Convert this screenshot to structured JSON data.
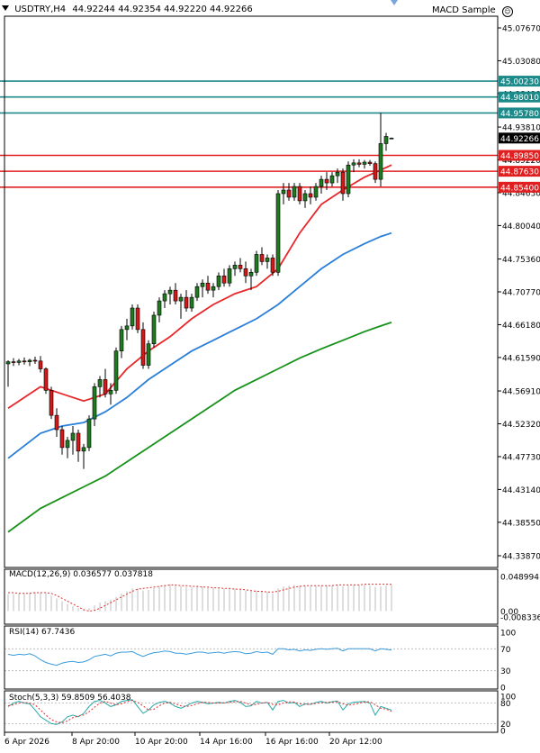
{
  "window": {
    "symbol_title": "USDTRY,H4",
    "ohlc": "44.92244 44.92354 44.92220 44.92266",
    "indicator_name": "MACD Sample",
    "symbol_arrow_icon": "triangle-down-icon",
    "smiley_icon": "smiley-icon"
  },
  "colors": {
    "bull": "#1f7a1f",
    "bear": "#d21818",
    "ma_fast": "#e8272a",
    "ma_mid": "#2a7fd8",
    "ma_slow": "#16911a",
    "hline_teal": "#1d8a8a",
    "hline_red": "#e02020",
    "macd_hist": "#c8c8c8",
    "macd_signal": "#e03030",
    "rsi": "#3a9bdc",
    "stoch_main": "#2aa8a8",
    "stoch_signal": "#e03030"
  },
  "price_axis": {
    "ticks": [
      "45.07670",
      "45.03080",
      "44.98490",
      "44.93810",
      "44.89220",
      "44.84630",
      "44.80040",
      "44.75360",
      "44.70770",
      "44.66180",
      "44.61590",
      "44.56910",
      "44.52320",
      "44.47730",
      "44.43140",
      "44.38550",
      "44.33870"
    ],
    "current_price_label": "44.92266"
  },
  "horizontal_levels": [
    {
      "label": "45.00230",
      "value": 45.0023,
      "kind": "teal"
    },
    {
      "label": "44.98010",
      "value": 44.9801,
      "kind": "teal"
    },
    {
      "label": "44.95780",
      "value": 44.9578,
      "kind": "teal"
    },
    {
      "label": "44.89850",
      "value": 44.8985,
      "kind": "red"
    },
    {
      "label": "44.87630",
      "value": 44.8763,
      "kind": "red"
    },
    {
      "label": "44.85400",
      "value": 44.854,
      "kind": "red"
    }
  ],
  "time_axis": [
    "6 Apr 2026",
    "8 Apr 20:00",
    "10 Apr 20:00",
    "14 Apr 16:00",
    "16 Apr 16:00",
    "20 Apr 12:00"
  ],
  "macd": {
    "label": "MACD(12,26,9) 0.036577 0.037818",
    "ticks": [
      "0.048994",
      "0.00",
      "-0.008336"
    ]
  },
  "rsi": {
    "label": "RSI(14) 67.7436",
    "ticks": [
      "100",
      "70",
      "30",
      "0"
    ]
  },
  "stoch": {
    "label": "Stoch(5,3,3) 59.8509 56.4038",
    "ticks": [
      "100",
      "80",
      "20",
      "0"
    ]
  },
  "chart_data": {
    "type": "candlestick",
    "symbol": "USDTRY",
    "timeframe": "H4",
    "ylim": [
      44.33,
      45.09
    ],
    "candles": [
      {
        "o": 44.607,
        "h": 44.612,
        "l": 44.575,
        "c": 44.61
      },
      {
        "o": 44.61,
        "h": 44.615,
        "l": 44.604,
        "c": 44.609
      },
      {
        "o": 44.609,
        "h": 44.614,
        "l": 44.605,
        "c": 44.611
      },
      {
        "o": 44.611,
        "h": 44.616,
        "l": 44.606,
        "c": 44.61
      },
      {
        "o": 44.61,
        "h": 44.614,
        "l": 44.604,
        "c": 44.612
      },
      {
        "o": 44.612,
        "h": 44.617,
        "l": 44.607,
        "c": 44.611
      },
      {
        "o": 44.611,
        "h": 44.618,
        "l": 44.595,
        "c": 44.6
      },
      {
        "o": 44.6,
        "h": 44.602,
        "l": 44.565,
        "c": 44.57
      },
      {
        "o": 44.57,
        "h": 44.575,
        "l": 44.53,
        "c": 44.535
      },
      {
        "o": 44.535,
        "h": 44.545,
        "l": 44.505,
        "c": 44.515
      },
      {
        "o": 44.515,
        "h": 44.52,
        "l": 44.48,
        "c": 44.49
      },
      {
        "o": 44.49,
        "h": 44.505,
        "l": 44.475,
        "c": 44.5
      },
      {
        "o": 44.5,
        "h": 44.52,
        "l": 44.48,
        "c": 44.51
      },
      {
        "o": 44.51,
        "h": 44.515,
        "l": 44.47,
        "c": 44.485
      },
      {
        "o": 44.485,
        "h": 44.495,
        "l": 44.46,
        "c": 44.49
      },
      {
        "o": 44.49,
        "h": 44.535,
        "l": 44.485,
        "c": 44.53
      },
      {
        "o": 44.53,
        "h": 44.58,
        "l": 44.52,
        "c": 44.575
      },
      {
        "o": 44.575,
        "h": 44.59,
        "l": 44.56,
        "c": 44.585
      },
      {
        "o": 44.585,
        "h": 44.6,
        "l": 44.56,
        "c": 44.565
      },
      {
        "o": 44.565,
        "h": 44.58,
        "l": 44.55,
        "c": 44.57
      },
      {
        "o": 44.57,
        "h": 44.63,
        "l": 44.565,
        "c": 44.625
      },
      {
        "o": 44.625,
        "h": 44.66,
        "l": 44.615,
        "c": 44.655
      },
      {
        "o": 44.655,
        "h": 44.67,
        "l": 44.64,
        "c": 44.66
      },
      {
        "o": 44.66,
        "h": 44.69,
        "l": 44.655,
        "c": 44.685
      },
      {
        "o": 44.685,
        "h": 44.69,
        "l": 44.65,
        "c": 44.655
      },
      {
        "o": 44.655,
        "h": 44.665,
        "l": 44.6,
        "c": 44.605
      },
      {
        "o": 44.605,
        "h": 44.64,
        "l": 44.6,
        "c": 44.635
      },
      {
        "o": 44.635,
        "h": 44.68,
        "l": 44.63,
        "c": 44.675
      },
      {
        "o": 44.675,
        "h": 44.7,
        "l": 44.665,
        "c": 44.695
      },
      {
        "o": 44.695,
        "h": 44.71,
        "l": 44.685,
        "c": 44.705
      },
      {
        "o": 44.705,
        "h": 44.715,
        "l": 44.69,
        "c": 44.71
      },
      {
        "o": 44.71,
        "h": 44.72,
        "l": 44.69,
        "c": 44.695
      },
      {
        "o": 44.695,
        "h": 44.705,
        "l": 44.67,
        "c": 44.7
      },
      {
        "o": 44.7,
        "h": 44.71,
        "l": 44.68,
        "c": 44.685
      },
      {
        "o": 44.685,
        "h": 44.705,
        "l": 44.68,
        "c": 44.7
      },
      {
        "o": 44.7,
        "h": 44.72,
        "l": 44.695,
        "c": 44.715
      },
      {
        "o": 44.715,
        "h": 44.725,
        "l": 44.7,
        "c": 44.72
      },
      {
        "o": 44.72,
        "h": 44.73,
        "l": 44.705,
        "c": 44.71
      },
      {
        "o": 44.71,
        "h": 44.72,
        "l": 44.7,
        "c": 44.715
      },
      {
        "o": 44.715,
        "h": 44.735,
        "l": 44.71,
        "c": 44.73
      },
      {
        "o": 44.73,
        "h": 44.74,
        "l": 44.715,
        "c": 44.72
      },
      {
        "o": 44.72,
        "h": 44.745,
        "l": 44.715,
        "c": 44.74
      },
      {
        "o": 44.74,
        "h": 44.75,
        "l": 44.73,
        "c": 44.745
      },
      {
        "o": 44.745,
        "h": 44.755,
        "l": 44.735,
        "c": 44.74
      },
      {
        "o": 44.74,
        "h": 44.75,
        "l": 44.72,
        "c": 44.73
      },
      {
        "o": 44.73,
        "h": 44.74,
        "l": 44.71,
        "c": 44.735
      },
      {
        "o": 44.735,
        "h": 44.765,
        "l": 44.73,
        "c": 44.76
      },
      {
        "o": 44.76,
        "h": 44.77,
        "l": 44.745,
        "c": 44.75
      },
      {
        "o": 44.75,
        "h": 44.76,
        "l": 44.74,
        "c": 44.755
      },
      {
        "o": 44.755,
        "h": 44.76,
        "l": 44.73,
        "c": 44.735
      },
      {
        "o": 44.735,
        "h": 44.85,
        "l": 44.73,
        "c": 44.845
      },
      {
        "o": 44.845,
        "h": 44.86,
        "l": 44.83,
        "c": 44.85
      },
      {
        "o": 44.85,
        "h": 44.86,
        "l": 44.835,
        "c": 44.84
      },
      {
        "o": 44.84,
        "h": 44.86,
        "l": 44.835,
        "c": 44.855
      },
      {
        "o": 44.855,
        "h": 44.86,
        "l": 44.83,
        "c": 44.835
      },
      {
        "o": 44.835,
        "h": 44.85,
        "l": 44.825,
        "c": 44.845
      },
      {
        "o": 44.845,
        "h": 44.855,
        "l": 44.83,
        "c": 44.84
      },
      {
        "o": 44.84,
        "h": 44.86,
        "l": 44.835,
        "c": 44.855
      },
      {
        "o": 44.855,
        "h": 44.87,
        "l": 44.845,
        "c": 44.865
      },
      {
        "o": 44.865,
        "h": 44.875,
        "l": 44.85,
        "c": 44.86
      },
      {
        "o": 44.86,
        "h": 44.875,
        "l": 44.855,
        "c": 44.87
      },
      {
        "o": 44.87,
        "h": 44.88,
        "l": 44.86,
        "c": 44.875
      },
      {
        "o": 44.875,
        "h": 44.88,
        "l": 44.835,
        "c": 44.845
      },
      {
        "o": 44.845,
        "h": 44.89,
        "l": 44.84,
        "c": 44.885
      },
      {
        "o": 44.885,
        "h": 44.893,
        "l": 44.875,
        "c": 44.888
      },
      {
        "o": 44.888,
        "h": 44.893,
        "l": 44.882,
        "c": 44.886
      },
      {
        "o": 44.886,
        "h": 44.892,
        "l": 44.88,
        "c": 44.889
      },
      {
        "o": 44.889,
        "h": 44.892,
        "l": 44.884,
        "c": 44.887
      },
      {
        "o": 44.887,
        "h": 44.89,
        "l": 44.86,
        "c": 44.865
      },
      {
        "o": 44.865,
        "h": 44.958,
        "l": 44.855,
        "c": 44.915
      },
      {
        "o": 44.915,
        "h": 44.93,
        "l": 44.905,
        "c": 44.925
      },
      {
        "o": 44.9224,
        "h": 44.9235,
        "l": 44.9222,
        "c": 44.9227
      }
    ],
    "moving_averages": [
      {
        "color_key": "ma_fast",
        "points": [
          [
            0,
            44.545
          ],
          [
            6,
            44.575
          ],
          [
            10,
            44.565
          ],
          [
            14,
            44.555
          ],
          [
            18,
            44.565
          ],
          [
            22,
            44.6
          ],
          [
            26,
            44.625
          ],
          [
            30,
            44.645
          ],
          [
            34,
            44.67
          ],
          [
            38,
            44.69
          ],
          [
            42,
            44.705
          ],
          [
            46,
            44.715
          ],
          [
            50,
            44.74
          ],
          [
            54,
            44.79
          ],
          [
            58,
            44.83
          ],
          [
            62,
            44.85
          ],
          [
            66,
            44.868
          ],
          [
            69,
            44.878
          ],
          [
            71,
            44.885
          ]
        ]
      },
      {
        "color_key": "ma_mid",
        "points": [
          [
            0,
            44.475
          ],
          [
            6,
            44.51
          ],
          [
            10,
            44.52
          ],
          [
            14,
            44.525
          ],
          [
            18,
            44.54
          ],
          [
            22,
            44.56
          ],
          [
            26,
            44.585
          ],
          [
            30,
            44.605
          ],
          [
            34,
            44.625
          ],
          [
            38,
            44.64
          ],
          [
            42,
            44.655
          ],
          [
            46,
            44.67
          ],
          [
            50,
            44.69
          ],
          [
            54,
            44.715
          ],
          [
            58,
            44.74
          ],
          [
            62,
            44.76
          ],
          [
            66,
            44.775
          ],
          [
            69,
            44.785
          ],
          [
            71,
            44.79
          ]
        ]
      },
      {
        "color_key": "ma_slow",
        "points": [
          [
            0,
            44.372
          ],
          [
            6,
            44.405
          ],
          [
            10,
            44.42
          ],
          [
            14,
            44.435
          ],
          [
            18,
            44.45
          ],
          [
            22,
            44.47
          ],
          [
            26,
            44.49
          ],
          [
            30,
            44.51
          ],
          [
            34,
            44.53
          ],
          [
            38,
            44.55
          ],
          [
            42,
            44.57
          ],
          [
            46,
            44.585
          ],
          [
            50,
            44.6
          ],
          [
            54,
            44.615
          ],
          [
            58,
            44.628
          ],
          [
            62,
            44.64
          ],
          [
            66,
            44.652
          ],
          [
            69,
            44.66
          ],
          [
            71,
            44.665
          ]
        ]
      }
    ],
    "macd_histogram": [
      0.024,
      0.024,
      0.025,
      0.025,
      0.026,
      0.027,
      0.026,
      0.025,
      0.022,
      0.018,
      0.014,
      0.01,
      0.007,
      0.004,
      0.002,
      0.004,
      0.008,
      0.012,
      0.014,
      0.016,
      0.02,
      0.025,
      0.028,
      0.032,
      0.032,
      0.029,
      0.03,
      0.033,
      0.035,
      0.037,
      0.038,
      0.037,
      0.035,
      0.034,
      0.034,
      0.035,
      0.035,
      0.034,
      0.033,
      0.033,
      0.032,
      0.032,
      0.032,
      0.031,
      0.029,
      0.028,
      0.029,
      0.028,
      0.027,
      0.025,
      0.032,
      0.035,
      0.036,
      0.037,
      0.036,
      0.036,
      0.035,
      0.035,
      0.036,
      0.036,
      0.036,
      0.037,
      0.035,
      0.036,
      0.037,
      0.037,
      0.037,
      0.036,
      0.034,
      0.035,
      0.036,
      0.0366
    ],
    "macd_signal": [
      0.026,
      0.026,
      0.025,
      0.025,
      0.025,
      0.026,
      0.026,
      0.026,
      0.025,
      0.022,
      0.018,
      0.014,
      0.01,
      0.006,
      0.002,
      0.0,
      0.001,
      0.004,
      0.008,
      0.012,
      0.016,
      0.02,
      0.024,
      0.028,
      0.031,
      0.032,
      0.033,
      0.034,
      0.035,
      0.036,
      0.037,
      0.037,
      0.036,
      0.036,
      0.035,
      0.035,
      0.034,
      0.034,
      0.033,
      0.033,
      0.032,
      0.032,
      0.031,
      0.031,
      0.03,
      0.029,
      0.028,
      0.028,
      0.027,
      0.027,
      0.028,
      0.03,
      0.032,
      0.034,
      0.035,
      0.036,
      0.036,
      0.036,
      0.036,
      0.036,
      0.036,
      0.037,
      0.037,
      0.037,
      0.037,
      0.037,
      0.038,
      0.038,
      0.038,
      0.038,
      0.038,
      0.0378
    ],
    "rsi": [
      60,
      58,
      60,
      59,
      61,
      57,
      50,
      45,
      42,
      40,
      44,
      46,
      47,
      45,
      46,
      50,
      56,
      58,
      60,
      57,
      62,
      64,
      64,
      65,
      60,
      56,
      60,
      63,
      64,
      66,
      65,
      62,
      62,
      60,
      62,
      64,
      64,
      62,
      63,
      64,
      62,
      64,
      65,
      64,
      61,
      62,
      65,
      63,
      64,
      60,
      70,
      70,
      68,
      69,
      66,
      68,
      67,
      69,
      70,
      69,
      70,
      71,
      66,
      70,
      70,
      70,
      70,
      70,
      66,
      70,
      69,
      67.7
    ],
    "stoch_main": [
      70,
      80,
      85,
      80,
      78,
      60,
      40,
      30,
      20,
      18,
      25,
      40,
      45,
      40,
      50,
      70,
      85,
      88,
      80,
      70,
      75,
      85,
      88,
      90,
      70,
      50,
      60,
      75,
      82,
      85,
      80,
      70,
      65,
      72,
      80,
      85,
      82,
      78,
      80,
      82,
      80,
      85,
      88,
      82,
      70,
      72,
      85,
      80,
      82,
      60,
      85,
      88,
      80,
      82,
      70,
      78,
      76,
      82,
      85,
      80,
      84,
      86,
      60,
      78,
      82,
      84,
      85,
      80,
      45,
      70,
      65,
      59.85
    ],
    "stoch_signal": [
      72,
      75,
      80,
      82,
      80,
      75,
      60,
      45,
      32,
      25,
      22,
      28,
      38,
      42,
      45,
      55,
      68,
      80,
      85,
      80,
      75,
      78,
      84,
      88,
      82,
      72,
      60,
      62,
      72,
      80,
      82,
      78,
      72,
      70,
      73,
      78,
      82,
      82,
      80,
      80,
      81,
      82,
      84,
      85,
      80,
      75,
      76,
      80,
      82,
      76,
      75,
      80,
      84,
      83,
      78,
      76,
      77,
      79,
      81,
      82,
      83,
      84,
      78,
      74,
      76,
      80,
      83,
      84,
      75,
      65,
      62,
      56.4
    ]
  }
}
